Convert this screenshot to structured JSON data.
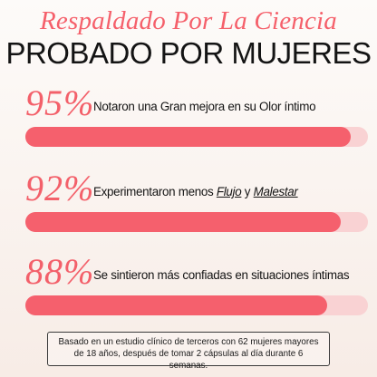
{
  "header": {
    "title": "Respaldado Por La Ciencia",
    "subtitle": "PROBADO POR MUJERES"
  },
  "stats": [
    {
      "percent_label": "95%",
      "value": 0.95,
      "text_before": "Notaron una Gran mejora en su Olor íntimo",
      "emph1": "",
      "joiner": "",
      "emph2": ""
    },
    {
      "percent_label": "92%",
      "value": 0.92,
      "text_before": "Experimentaron menos ",
      "emph1": "Flujo",
      "joiner": " y ",
      "emph2": "Malestar"
    },
    {
      "percent_label": "88%",
      "value": 0.88,
      "text_before": "Se sintieron más confiadas en situaciones íntimas",
      "emph1": "",
      "joiner": "",
      "emph2": ""
    }
  ],
  "footnote": "Basado en un estudio clínico de terceros con 62 mujeres mayores de 18 años, después de tomar 2 cápsulas al día durante 6 semanas.",
  "colors": {
    "accent": "#f5606d",
    "track": "#f9d2d3",
    "text": "#141414"
  }
}
